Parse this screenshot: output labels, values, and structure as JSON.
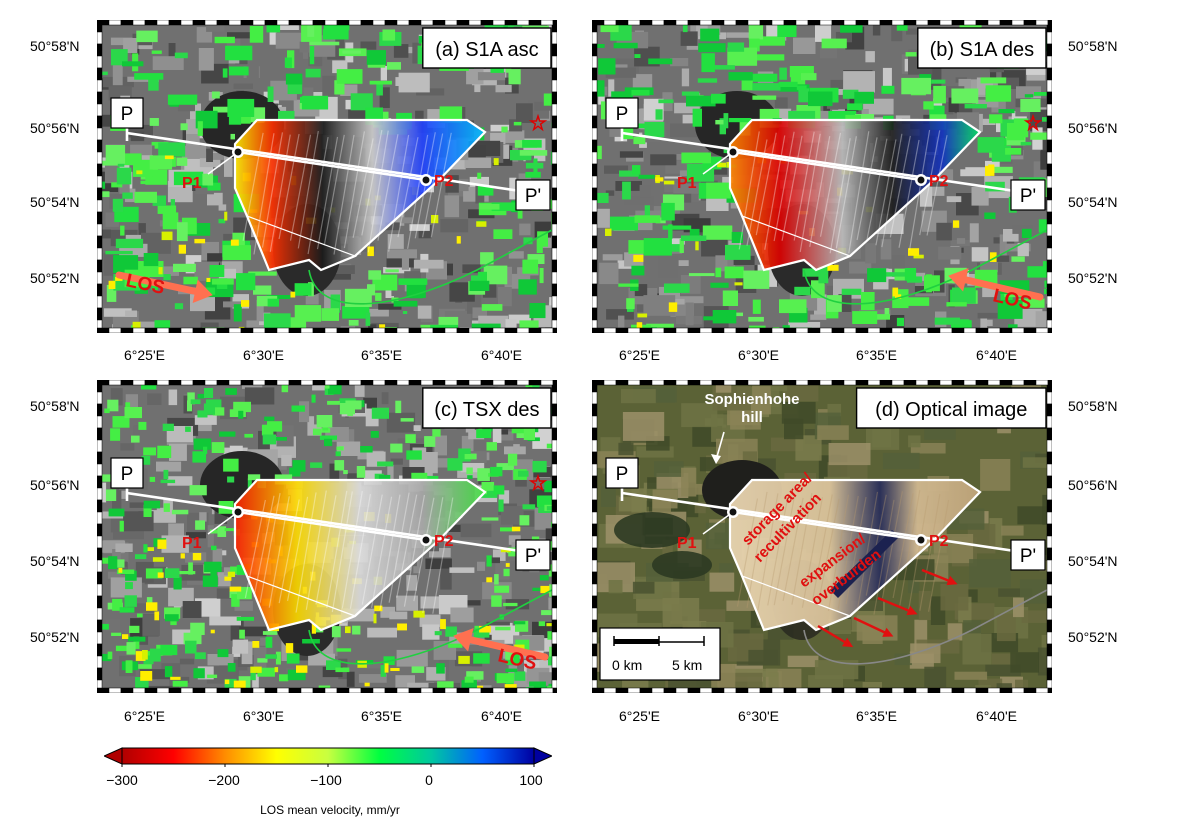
{
  "panels": [
    {
      "id": "a",
      "title": "(a) S1A asc",
      "los": "LOS",
      "kind": "insar_asc"
    },
    {
      "id": "b",
      "title": "(b) S1A des",
      "los": "LOS",
      "kind": "insar_des"
    },
    {
      "id": "c",
      "title": "(c) TSX des",
      "los": "LOS",
      "kind": "insar_tsx"
    },
    {
      "id": "d",
      "title": "(d) Optical image",
      "los": "",
      "kind": "optical"
    }
  ],
  "profile": {
    "start_label": "P",
    "end_label": "P'",
    "point1_label": "P1",
    "point2_label": "P2"
  },
  "lat_ticks": [
    "50°58'N",
    "50°56'N",
    "50°54'N",
    "50°52'N"
  ],
  "lon_ticks": [
    "6°25'E",
    "6°30'E",
    "6°35'E",
    "6°40'E"
  ],
  "optical_annotations": {
    "hill_label_line1": "Sophienhohe",
    "hill_label_line2": "hill",
    "storage_label_line1": "storage area/",
    "storage_label_line2": "recultivation",
    "expansion_label_line1": "expansion/",
    "expansion_label_line2": "overburden",
    "scale_label_0": "0 km",
    "scale_label_5": "5 km"
  },
  "colorbar": {
    "title": "LOS mean velocity, mm/yr",
    "ticks": [
      "−300",
      "−200",
      "−100",
      "0",
      "100"
    ],
    "min": -300,
    "max": 100,
    "colors": [
      "#b00000",
      "#ff0000",
      "#ff8c00",
      "#ffff00",
      "#c8ff40",
      "#00ff40",
      "#00c8a0",
      "#0060ff",
      "#0000a0"
    ]
  }
}
